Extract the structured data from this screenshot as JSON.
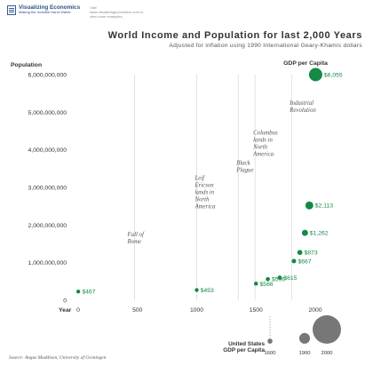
{
  "brand": {
    "name": "Visualizing Economics",
    "tagline": "Making the Invisible Hand Visible",
    "url_text": "Visit www.visualizingeconomics.com to view more examples"
  },
  "title": "World Income and Population for last 2,000 Years",
  "subtitle": "Adjusted for inflation using 1990 International Geary-Khamis dollars",
  "source": "Source: Angus Maddison, University of Groningen",
  "colors": {
    "bubble": "#148a45",
    "label": "#148a45",
    "size_key": "#777777",
    "guide_lines": "#dcdcdc"
  },
  "chart_data": {
    "type": "scatter",
    "title": "World Income and Population for last 2,000 Years",
    "xlabel": "Year",
    "ylabel": "Population",
    "size_legend_title": "GDP per Capita",
    "xlim": [
      0,
      2000
    ],
    "ylim": [
      0,
      6000000000
    ],
    "x_ticks": [
      "0",
      "500",
      "1000",
      "1500",
      "2000"
    ],
    "x_tick_values": [
      0,
      500,
      1000,
      1500,
      2000
    ],
    "y_ticks": [
      "0",
      "1,000,000,000",
      "2,000,000,000",
      "3,000,000,000",
      "4,000,000,000",
      "5,000,000,000",
      "6,000,000,000"
    ],
    "y_tick_values": [
      0,
      1000000000,
      2000000000,
      3000000000,
      4000000000,
      5000000000,
      6000000000
    ],
    "grid": false,
    "series": [
      {
        "points": [
          {
            "x": 1,
            "y": 230000000,
            "gdp": 467,
            "label": "$467"
          },
          {
            "x": 1000,
            "y": 270000000,
            "gdp": 453,
            "label": "$453"
          },
          {
            "x": 1500,
            "y": 440000000,
            "gdp": 566,
            "label": "$566"
          },
          {
            "x": 1600,
            "y": 560000000,
            "gdp": 596,
            "label": "$596"
          },
          {
            "x": 1700,
            "y": 600000000,
            "gdp": 615,
            "label": "$615"
          },
          {
            "x": 1820,
            "y": 1040000000,
            "gdp": 667,
            "label": "$667"
          },
          {
            "x": 1870,
            "y": 1270000000,
            "gdp": 873,
            "label": "$873"
          },
          {
            "x": 1913,
            "y": 1790000000,
            "gdp": 1262,
            "label": "$1,262"
          },
          {
            "x": 1950,
            "y": 2520000000,
            "gdp": 2113,
            "label": "$2,113"
          },
          {
            "x": 2003,
            "y": 6000000000,
            "gdp": 6055,
            "label": "$6,055"
          }
        ]
      }
    ],
    "annotations": [
      {
        "x": 476,
        "text": "Fall of Rome",
        "top_y": 1700000000
      },
      {
        "x": 1000,
        "text": "Leif Ericson lands in North America",
        "top_y": 3200000000
      },
      {
        "x": 1350,
        "text": "Black Plague",
        "top_y": 3600000000
      },
      {
        "x": 1492,
        "text": "Columbus lands in North America",
        "top_y": 4400000000
      },
      {
        "x": 1800,
        "text": "Industrial Revolution",
        "top_y": 5200000000
      }
    ],
    "size_key": {
      "label_line1": "United States",
      "label_line2": "GDP per Capita",
      "items": [
        {
          "year": "1600",
          "gdp": 897
        },
        {
          "year": "1900",
          "gdp": 4091
        },
        {
          "year": "2000",
          "gdp": 28702
        }
      ]
    }
  }
}
